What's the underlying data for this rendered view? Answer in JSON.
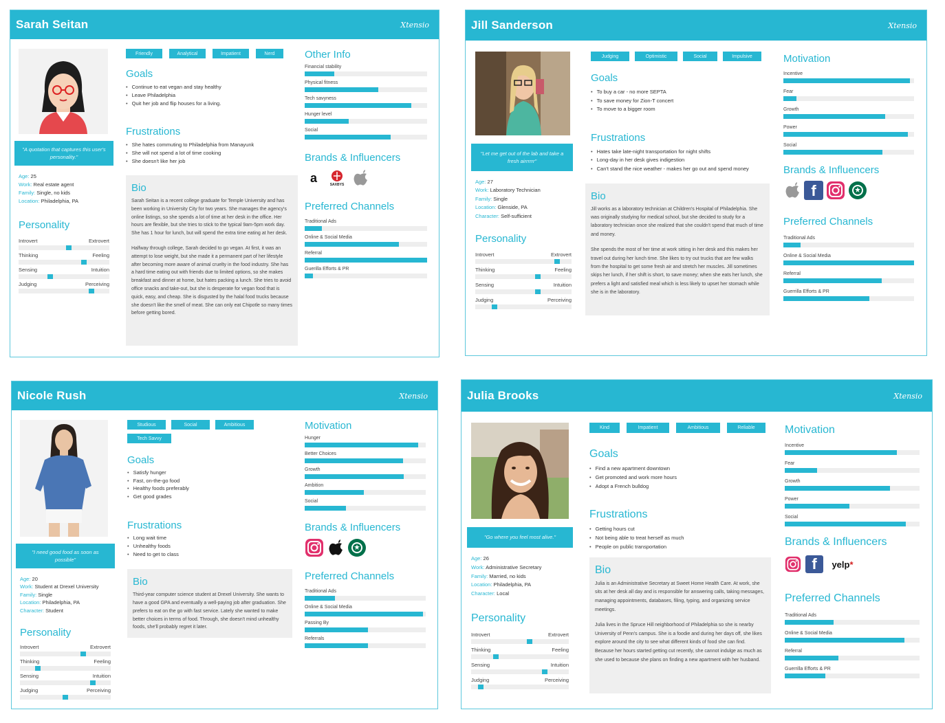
{
  "personas": [
    {
      "name": "Sarah Seitan",
      "logo": "Xtensio",
      "quote": "\"A quotation that captures this user's personality.\"",
      "facts": [
        {
          "key": "Age:",
          "value": " 25"
        },
        {
          "key": "Work:",
          "value": " Real estate agent"
        },
        {
          "key": "Family:",
          "value": " Single, no kids"
        },
        {
          "key": "Location:",
          "value": " Philadelphia, PA"
        }
      ],
      "personality_title": "Personality",
      "personality": [
        {
          "left": "Introvert",
          "right": "Extrovert",
          "pos": 0.55
        },
        {
          "left": "Thinking",
          "right": "Feeling",
          "pos": 0.72
        },
        {
          "left": "Sensing",
          "right": "Intuition",
          "pos": 0.35
        },
        {
          "left": "Judging",
          "right": "Perceiving",
          "pos": 0.8
        }
      ],
      "tags": [
        "Friendly",
        "Analytical",
        "Impatient",
        "Nerd"
      ],
      "goals_title": "Goals",
      "goals": [
        "Continue to eat vegan and stay healthy",
        "Leave Philadelphia",
        "Quit her job and flip houses for a living."
      ],
      "frustrations_title": "Frustrations",
      "frustrations": [
        "She hates commuting to Philadelphia from Manayunk",
        "She will not spend a lot of time cooking",
        "She doesn't like her job"
      ],
      "bio_title": "Bio",
      "bio": [
        "Sarah Seitan is a recent college graduate for Temple University and has been working in University City for two years. She manages the agency's online listings, so she spends a lot of time at her desk in the office. Her hours are flexible, but she tries to stick to the typical 9am-5pm work day. She has 1 hour for lunch, but will spend the extra time eating at her desk.",
        "Halfway through college, Sarah decided to go vegan. At first, it was an attempt to lose weight, but she made it a permanent part of her lifestyle after becoming more aware of animal cruelty in the food industry. She has a hard time eating out with friends due to limited options, so she makes breakfast and dinner at home, but hates packing a lunch. She tries to avoid office snacks and take-out, but she is desperate for vegan food that is quick, easy, and cheap. She is disgusted by the halal food trucks because she doesn't like the smell of meat. She can only eat Chipotle so many times before getting bored."
      ],
      "side1_title": "Other Info",
      "side1": [
        {
          "label": "Financial stability",
          "value": 0.24
        },
        {
          "label": "Physical fitness",
          "value": 0.6
        },
        {
          "label": "Tech savyness",
          "value": 0.87
        },
        {
          "label": "Hunger level",
          "value": 0.36
        },
        {
          "label": "Social",
          "value": 0.7
        }
      ],
      "brands_title": "Brands & Influencers",
      "brands": [
        "amazon-icon",
        "saxbys-icon",
        "apple-icon"
      ],
      "brands_caption": "SAXBYS",
      "channels_title": "Preferred Channels",
      "channels": [
        {
          "label": "Traditional Ads",
          "value": 0.14
        },
        {
          "label": "Online & Social Media",
          "value": 0.77
        },
        {
          "label": "Referral",
          "value": 1.0
        },
        {
          "label": "Guerilla Efforts & PR",
          "value": 0.07
        }
      ]
    },
    {
      "name": "Jill Sanderson",
      "logo": "Xtensio",
      "quote": "\"Let me get out of the lab and take a fresh airrrrrr\"",
      "facts": [
        {
          "key": "Age:",
          "value": " 27"
        },
        {
          "key": "Work:",
          "value": " Laboratory Technician"
        },
        {
          "key": "Family:",
          "value": " Single"
        },
        {
          "key": "Location:",
          "value": " Glenside, PA"
        },
        {
          "key": "Character:",
          "value": " Self-sufficient"
        }
      ],
      "personality_title": "Personality",
      "personality": [
        {
          "left": "Introvert",
          "right": "Extrovert",
          "pos": 0.85
        },
        {
          "left": "Thinking",
          "right": "Feeling",
          "pos": 0.65
        },
        {
          "left": "Sensing",
          "right": "Intuition",
          "pos": 0.65
        },
        {
          "left": "Judging",
          "right": "Perceiving",
          "pos": 0.2
        }
      ],
      "tags": [
        "Judging",
        "Optimistic",
        "Social",
        "Impulsive"
      ],
      "goals_title": "Goals",
      "goals": [
        "To buy a car - no more SEPTA",
        "To save money for Zion-T concert",
        "To move to a bigger room"
      ],
      "frustrations_title": "Frustrations",
      "frustrations": [
        "Hates take late-night transportation for night shifts",
        "Long-day in her desk gives indigestion",
        "Can't stand the nice weather - makes her go out and spend money"
      ],
      "bio_title": "Bio",
      "bio": [
        "Jill works as a laboratory technician at Children's Hospital of Philadelphia. She was originally studying for medical school, but she decided to study for a laboratory technician once she realized that she couldn't spend that much of time and money.",
        "She spends the most of her time at work sitting in her desk and this makes her travel out during her lunch time. She likes to try out trucks that are few walks from the hospital to get some fresh air and stretch her muscles. Jill sometimes skips her lunch, if her shift is short, to save money; when she eats her lunch, she prefers a light and satisfied meal which is less likely to upset her stomach while she is in the laboratory."
      ],
      "side1_title": "Motivation",
      "side1": [
        {
          "label": "Incentive",
          "value": 0.97
        },
        {
          "label": "Fear",
          "value": 0.1
        },
        {
          "label": "Growth",
          "value": 0.78
        },
        {
          "label": "Power",
          "value": 0.95
        },
        {
          "label": "Social",
          "value": 0.76
        }
      ],
      "brands_title": "Brands & Influencers",
      "brands": [
        "apple-icon",
        "facebook-icon",
        "instagram-icon",
        "starbucks-icon"
      ],
      "brands_caption": "",
      "channels_title": "Preferred Channels",
      "channels": [
        {
          "label": "Traditional Ads",
          "value": 0.13
        },
        {
          "label": "Online & Social Media",
          "value": 1.0
        },
        {
          "label": "Referral",
          "value": 0.75
        },
        {
          "label": "Guerrilla Efforts & PR",
          "value": 0.66
        }
      ]
    },
    {
      "name": "Nicole Rush",
      "logo": "Xtensio",
      "quote": "\"I need good food as soon as possible\"",
      "facts": [
        {
          "key": "Age:",
          "value": " 20"
        },
        {
          "key": "Work:",
          "value": " Student at Drexel University"
        },
        {
          "key": "Family:",
          "value": " Single"
        },
        {
          "key": "Location:",
          "value": " Philadelphia, PA"
        },
        {
          "key": "Character:",
          "value": " Student"
        }
      ],
      "personality_title": "Personality",
      "personality": [
        {
          "left": "Introvert",
          "right": "Extrovert",
          "pos": 0.7
        },
        {
          "left": "Thinking",
          "right": "Feeling",
          "pos": 0.2
        },
        {
          "left": "Sensing",
          "right": "Intuition",
          "pos": 0.8
        },
        {
          "left": "Judging",
          "right": "Perceiving",
          "pos": 0.5
        }
      ],
      "tags": [
        "Studious",
        "Social",
        "Ambitious",
        "Tech Savvy"
      ],
      "goals_title": "Goals",
      "goals": [
        "Satisfy hunger",
        "Fast, on-the-go food",
        "Healthy foods preferably",
        "Get good grades"
      ],
      "frustrations_title": "Frustrations",
      "frustrations": [
        "Long wait time",
        "Unhealthy foods",
        "Need to get to class"
      ],
      "bio_title": "Bio",
      "bio": [
        "Third-year computer science student at Drexel University. She wants to have a good GPA and eventually a well-paying job after graduation. She prefers to eat on the go with fast service. Lately she wanted to make better choices in terms of food. Through, she doesn't mind unhealthy foods, she'll probably regret it later."
      ],
      "side1_title": "Motivation",
      "side1": [
        {
          "label": "Hunger",
          "value": 0.94
        },
        {
          "label": "Better Choices",
          "value": 0.81
        },
        {
          "label": "Growth",
          "value": 0.82
        },
        {
          "label": "Ambition",
          "value": 0.49
        },
        {
          "label": "Social",
          "value": 0.34
        }
      ],
      "brands_title": "Brands & Influencers",
      "brands": [
        "instagram-icon",
        "apple-icon",
        "starbucks-icon"
      ],
      "brands_caption": "",
      "channels_title": "Preferred Channels",
      "channels": [
        {
          "label": "Traditional Ads",
          "value": 0.25
        },
        {
          "label": "Online & Social Media",
          "value": 0.98
        },
        {
          "label": "Passing By",
          "value": 0.52
        },
        {
          "label": "Referrals",
          "value": 0.52
        }
      ]
    },
    {
      "name": "Julia Brooks",
      "logo": "Xtensio",
      "quote": "\"Go where you feel most alive.\"",
      "facts": [
        {
          "key": "Age:",
          "value": " 26"
        },
        {
          "key": "Work:",
          "value": " Administrative Secretary"
        },
        {
          "key": "Family:",
          "value": " Married, no kids"
        },
        {
          "key": "Location:",
          "value": " Philadelphia, PA"
        },
        {
          "key": "Character:",
          "value": " Local"
        }
      ],
      "personality_title": "Personality",
      "personality": [
        {
          "left": "Introvert",
          "right": "Extrovert",
          "pos": 0.6
        },
        {
          "left": "Thinking",
          "right": "Feeling",
          "pos": 0.25
        },
        {
          "left": "Sensing",
          "right": "Intuition",
          "pos": 0.75
        },
        {
          "left": "Judging",
          "right": "Perceiving",
          "pos": 0.1
        }
      ],
      "tags": [
        "Kind",
        "Impatient",
        "Ambitious",
        "Reliable"
      ],
      "goals_title": "Goals",
      "goals": [
        "Find a new apartment downtown",
        "Get promoted and work more hours",
        "Adopt a French bulldog"
      ],
      "frustrations_title": "Frustrations",
      "frustrations": [
        "Getting hours cut",
        "Not being able to treat herself as much",
        "People on public transportation"
      ],
      "bio_title": "Bio",
      "bio": [
        "Julia is an Administrative Secretary at Sweet Home Health Care. At work, she sits at her desk all day and is responsible for answering calls, taking messages, managing appointments, databases, filing, typing, and organizing service meetings.",
        "Julia lives in the Spruce Hill neighborhood of Philadelphia so she is nearby University of Penn's campus. She is a foodie and during her days off, she likes explore around the city to see what different kinds of food she can find. Because her hours started getting cut recently, she cannot indulge as much as she used to because she plans on finding a new apartment with her husband."
      ],
      "side1_title": "Motivation",
      "side1": [
        {
          "label": "Incentive",
          "value": 0.83
        },
        {
          "label": "Fear",
          "value": 0.24
        },
        {
          "label": "Growth",
          "value": 0.78
        },
        {
          "label": "Power",
          "value": 0.48
        },
        {
          "label": "Social",
          "value": 0.9
        }
      ],
      "brands_title": "Brands & Influencers",
      "brands": [
        "instagram-icon",
        "facebook-icon",
        "yelp-icon"
      ],
      "brands_caption": "",
      "channels_title": "Preferred Channels",
      "channels": [
        {
          "label": "Traditional Ads",
          "value": 0.36
        },
        {
          "label": "Online & Social Media",
          "value": 0.89
        },
        {
          "label": "Referral",
          "value": 0.4
        },
        {
          "label": "Guerrilla Efforts & PR",
          "value": 0.3
        }
      ]
    }
  ]
}
